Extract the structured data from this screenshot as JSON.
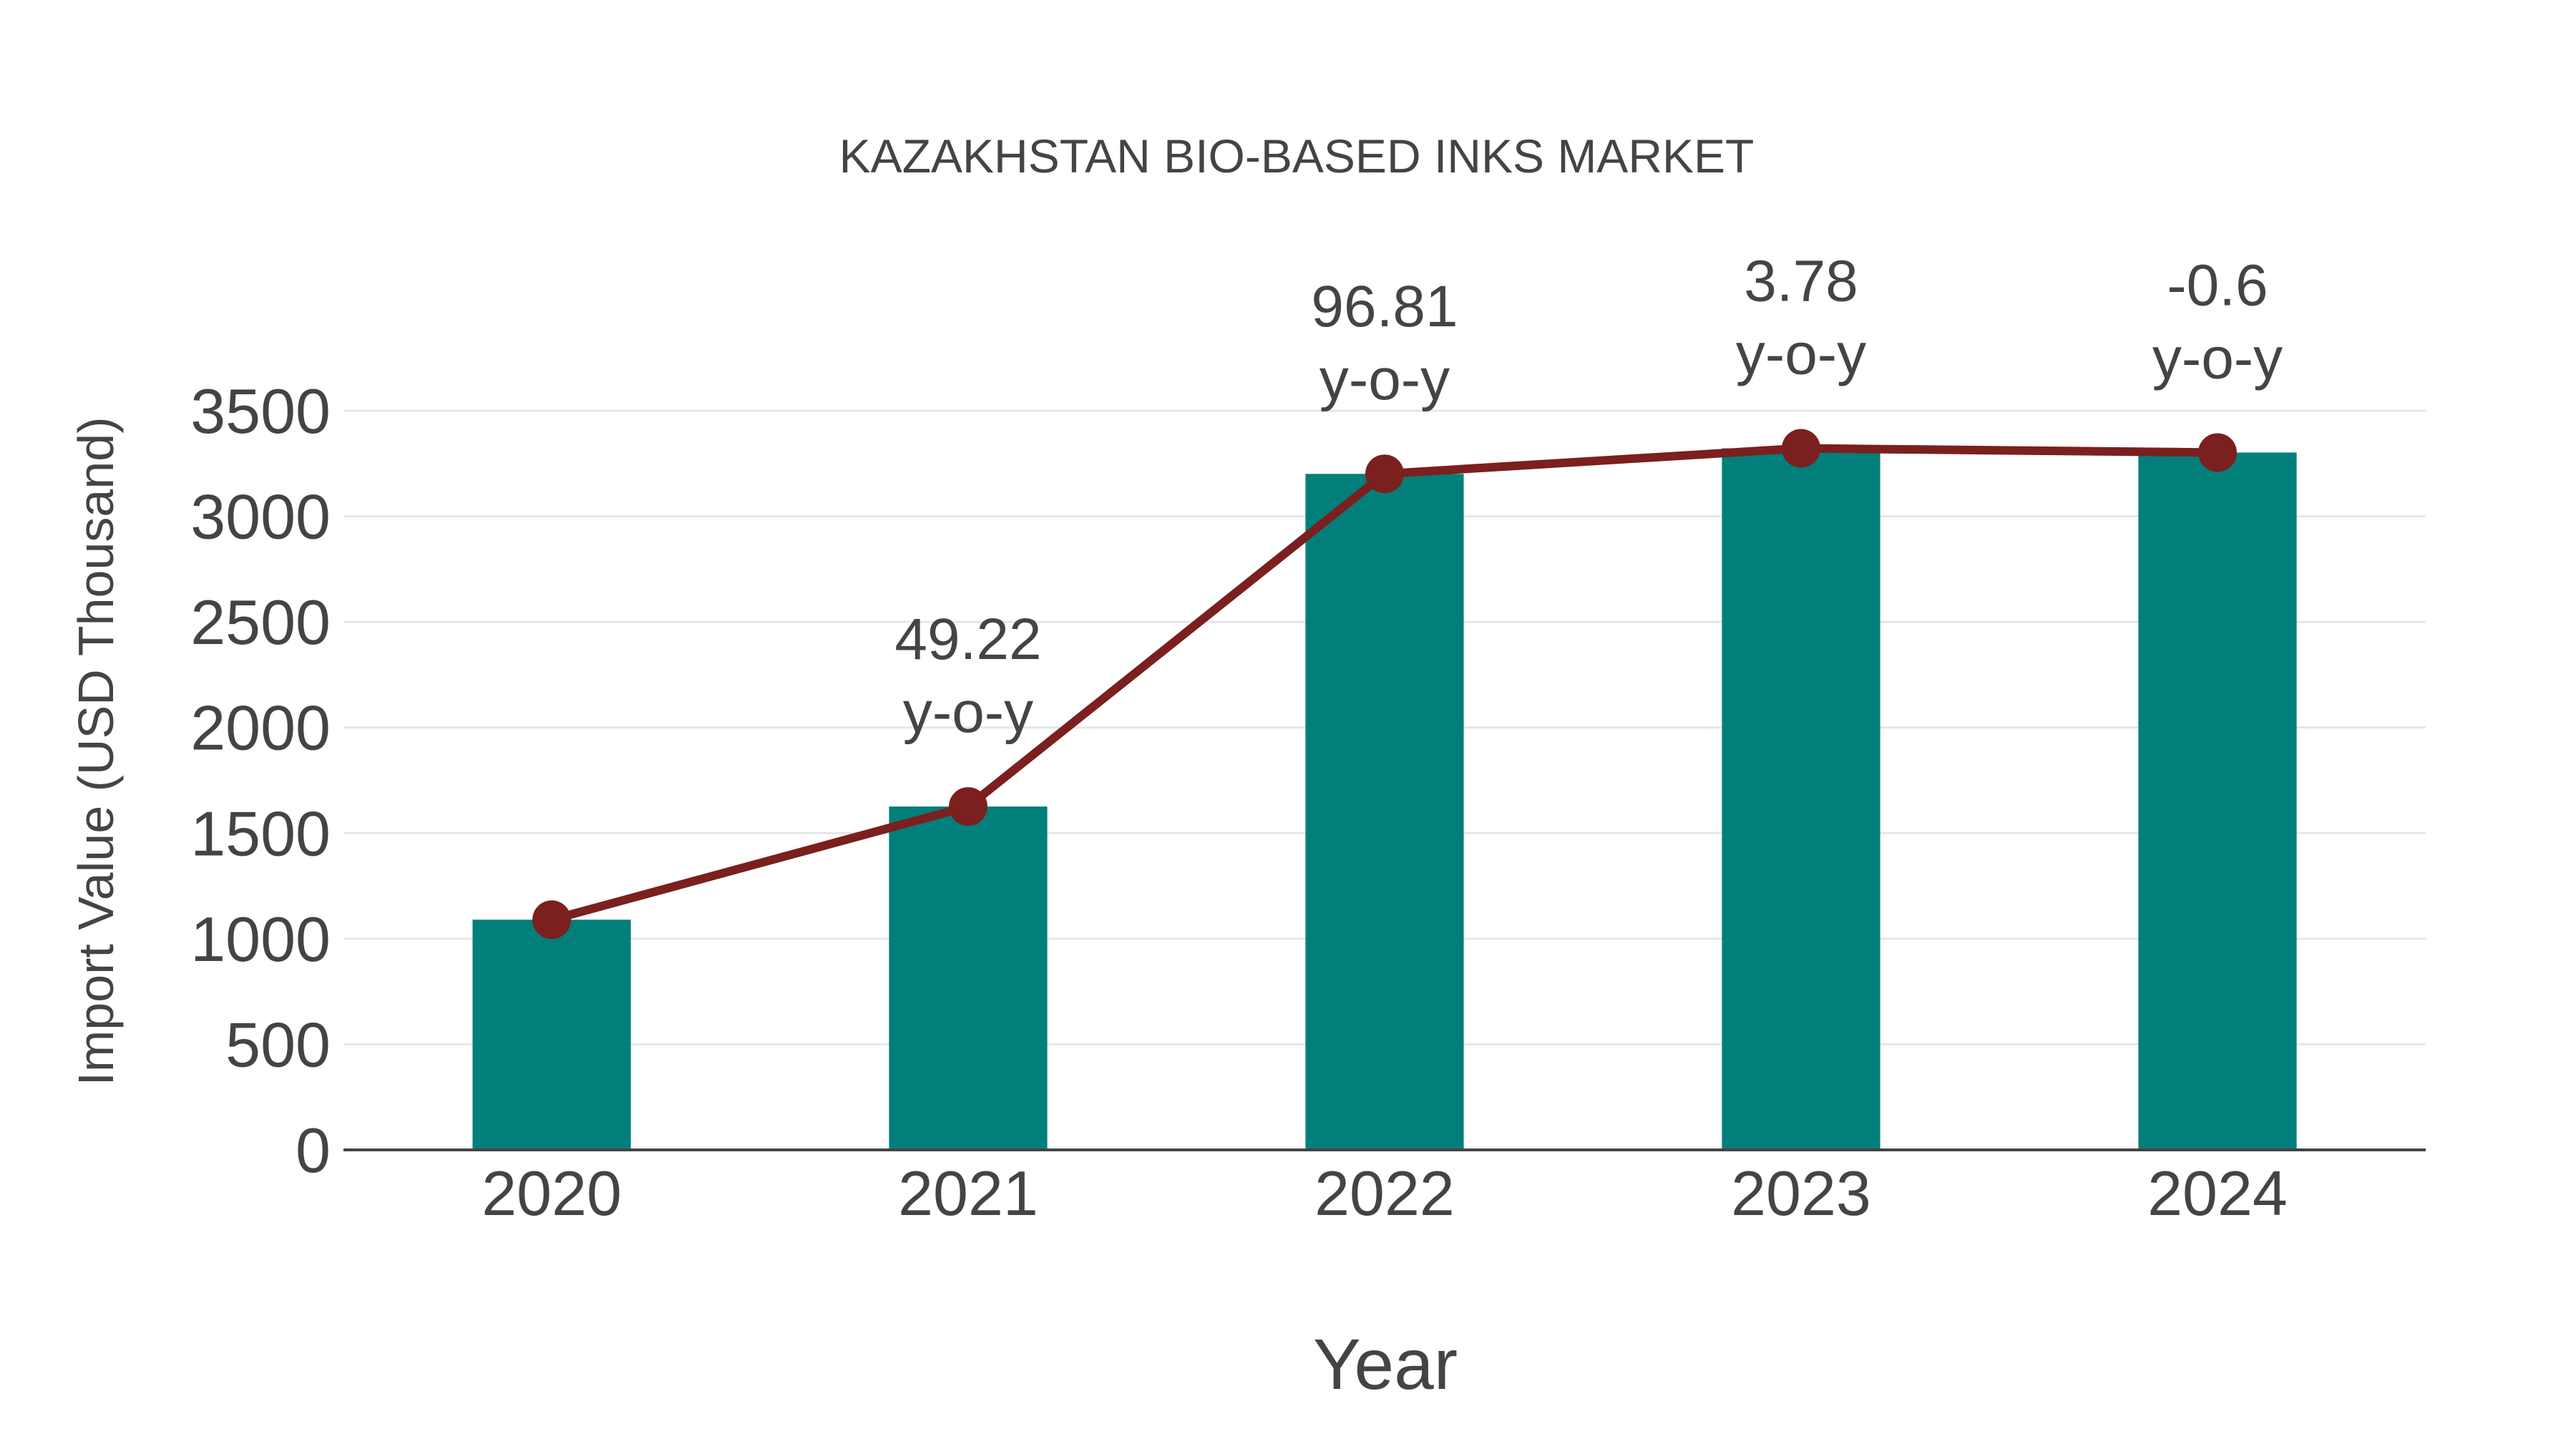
{
  "chart_data": {
    "type": "bar",
    "title": "KAZAKHSTAN BIO-BASED INKS MARKET",
    "xlabel": "Year",
    "ylabel": "Import Value (USD Thousand)",
    "categories": [
      "2020",
      "2021",
      "2022",
      "2023",
      "2024"
    ],
    "series": [
      {
        "name": "Import Value",
        "type": "bar",
        "color": "#027f7b",
        "values": [
          1090,
          1626,
          3201,
          3322,
          3302
        ]
      },
      {
        "name": "Import Value Trend",
        "type": "line",
        "color": "#7b1f1f",
        "marker": "circle",
        "values": [
          1090,
          1626,
          3201,
          3322,
          3302
        ]
      }
    ],
    "annotations": [
      {
        "category": "2021",
        "value": "49.22",
        "suffix": "y-o-y"
      },
      {
        "category": "2022",
        "value": "96.81",
        "suffix": "y-o-y"
      },
      {
        "category": "2023",
        "value": "3.78",
        "suffix": "y-o-y"
      },
      {
        "category": "2024",
        "value": "-0.6",
        "suffix": "y-o-y"
      }
    ],
    "yticks": [
      0,
      500,
      1000,
      1500,
      2000,
      2500,
      3000,
      3500
    ],
    "ylim": [
      0,
      3500
    ],
    "grid": true,
    "legend": "none"
  },
  "colors": {
    "bar": "#027f7b",
    "line": "#7b1f1f",
    "text": "#444444",
    "grid": "#e6e6e6",
    "axis": "#444444",
    "background": "#ffffff"
  }
}
